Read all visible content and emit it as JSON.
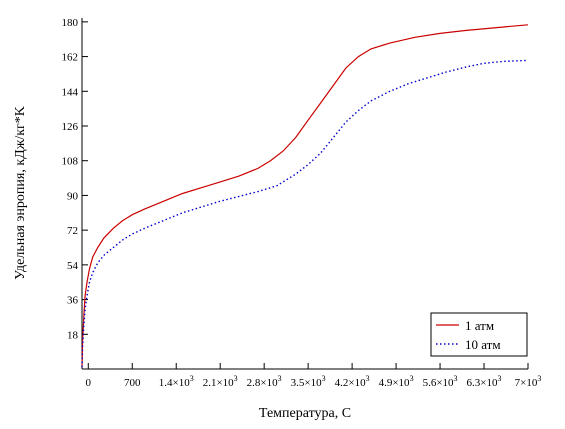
{
  "chart_data": {
    "type": "line",
    "xlabel": "Температура, С",
    "ylabel": "Удельная энропия, кДж/кг*K",
    "xlim": [
      -100,
      7000
    ],
    "ylim": [
      0,
      182
    ],
    "x_ticks": [
      {
        "value": 0,
        "base": "0",
        "exp": ""
      },
      {
        "value": 700,
        "base": "700",
        "exp": ""
      },
      {
        "value": 1400,
        "base": "1.4×10",
        "exp": "3"
      },
      {
        "value": 2100,
        "base": "2.1×10",
        "exp": "3"
      },
      {
        "value": 2800,
        "base": "2.8×10",
        "exp": "3"
      },
      {
        "value": 3500,
        "base": "3.5×10",
        "exp": "3"
      },
      {
        "value": 4200,
        "base": "4.2×10",
        "exp": "3"
      },
      {
        "value": 4900,
        "base": "4.9×10",
        "exp": "3"
      },
      {
        "value": 5600,
        "base": "5.6×10",
        "exp": "3"
      },
      {
        "value": 6300,
        "base": "6.3×10",
        "exp": "3"
      },
      {
        "value": 7000,
        "base": "7×10",
        "exp": "3"
      }
    ],
    "y_ticks": [
      "18",
      "36",
      "54",
      "72",
      "90",
      "108",
      "126",
      "144",
      "162",
      "180"
    ],
    "grid": false,
    "legend_position": "bottom-right",
    "series": [
      {
        "name": "1 атм",
        "color": "#cc0000",
        "style": "solid",
        "x": [
          -100,
          -90,
          -70,
          -50,
          -20,
          20,
          70,
          150,
          250,
          400,
          550,
          700,
          900,
          1200,
          1500,
          1800,
          2100,
          2400,
          2700,
          2900,
          3100,
          3300,
          3500,
          3700,
          3900,
          4100,
          4300,
          4500,
          4800,
          5200,
          5600,
          6000,
          6500,
          7000
        ],
        "y": [
          1,
          15,
          28,
          38,
          45,
          52,
          58,
          63,
          68,
          73,
          77,
          80,
          83,
          87,
          91,
          94,
          97,
          100,
          104,
          108,
          113,
          120,
          129,
          138,
          147,
          156,
          162,
          166,
          169,
          172,
          174,
          175.5,
          177,
          178.5
        ]
      },
      {
        "name": "10 атм",
        "color": "#0000cc",
        "style": "dotted",
        "x": [
          -100,
          -90,
          -70,
          -50,
          -20,
          20,
          70,
          150,
          250,
          400,
          550,
          700,
          900,
          1200,
          1500,
          1800,
          2100,
          2400,
          2700,
          3000,
          3300,
          3500,
          3700,
          3900,
          4100,
          4300,
          4500,
          4800,
          5100,
          5400,
          5700,
          6000,
          6300,
          6600,
          7000
        ],
        "y": [
          1,
          12,
          23,
          31,
          38,
          45,
          50,
          55,
          59,
          63,
          67,
          70,
          73,
          77,
          81,
          84,
          87,
          89.5,
          92,
          95,
          101,
          106,
          112,
          120,
          128,
          134,
          139,
          144,
          148,
          151,
          154,
          156.5,
          158.5,
          159.5,
          160
        ]
      }
    ]
  }
}
